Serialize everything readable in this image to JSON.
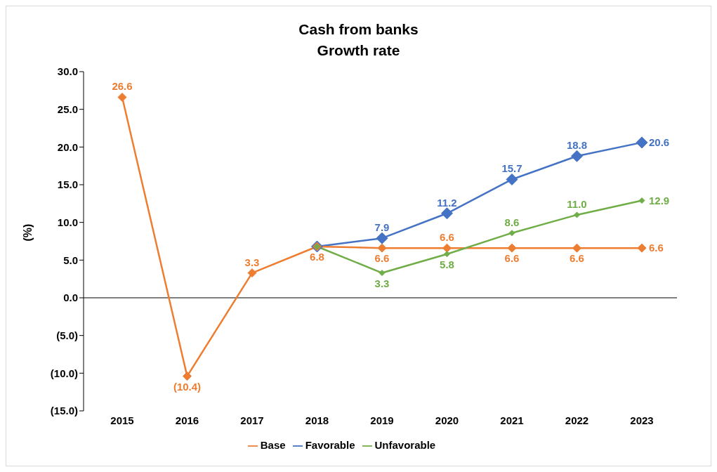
{
  "chart_data": {
    "type": "line",
    "title": "Cash from banks",
    "subtitle": "Growth rate",
    "ylabel": "(%)",
    "categories": [
      "2015",
      "2016",
      "2017",
      "2018",
      "2019",
      "2020",
      "2021",
      "2022",
      "2023"
    ],
    "series": [
      {
        "name": "Favorable",
        "color": "#4472c4",
        "values": [
          null,
          null,
          null,
          6.8,
          7.9,
          11.2,
          15.7,
          18.8,
          20.6
        ],
        "value_labels": [
          null,
          null,
          null,
          null,
          "7.9",
          "11.2",
          "15.7",
          "18.8",
          "20.6"
        ]
      },
      {
        "name": "Base",
        "color": "#ed7d31",
        "values": [
          26.6,
          -10.4,
          3.3,
          6.8,
          6.6,
          6.6,
          6.6,
          6.6,
          6.6
        ],
        "value_labels": [
          "26.6",
          "(10.4)",
          "3.3",
          "6.8",
          "6.6",
          "6.6",
          "6.6",
          "6.6",
          "6.6"
        ]
      },
      {
        "name": "Unfavorable",
        "color": "#70ad47",
        "values": [
          null,
          null,
          null,
          6.8,
          3.3,
          5.8,
          8.6,
          11.0,
          12.9
        ],
        "value_labels": [
          null,
          null,
          null,
          null,
          "3.3",
          "5.8",
          "8.6",
          "11.0",
          "12.9"
        ]
      }
    ],
    "ylim": [
      -15,
      30
    ],
    "yticks": [
      {
        "value": -15,
        "label": "(15.0)"
      },
      {
        "value": -10,
        "label": "(10.0)"
      },
      {
        "value": -5,
        "label": "(5.0)"
      },
      {
        "value": 0,
        "label": "0.0"
      },
      {
        "value": 5,
        "label": "5.0"
      },
      {
        "value": 10,
        "label": "10.0"
      },
      {
        "value": 15,
        "label": "15.0"
      },
      {
        "value": 20,
        "label": "20.0"
      },
      {
        "value": 25,
        "label": "25.0"
      },
      {
        "value": 30,
        "label": "30.0"
      }
    ],
    "ref_lines": [
      {
        "axis": "y",
        "value": 0,
        "color": "#000000"
      }
    ],
    "grid": false,
    "legend": "bottom",
    "marker": "diamond",
    "line_style": "solid"
  }
}
